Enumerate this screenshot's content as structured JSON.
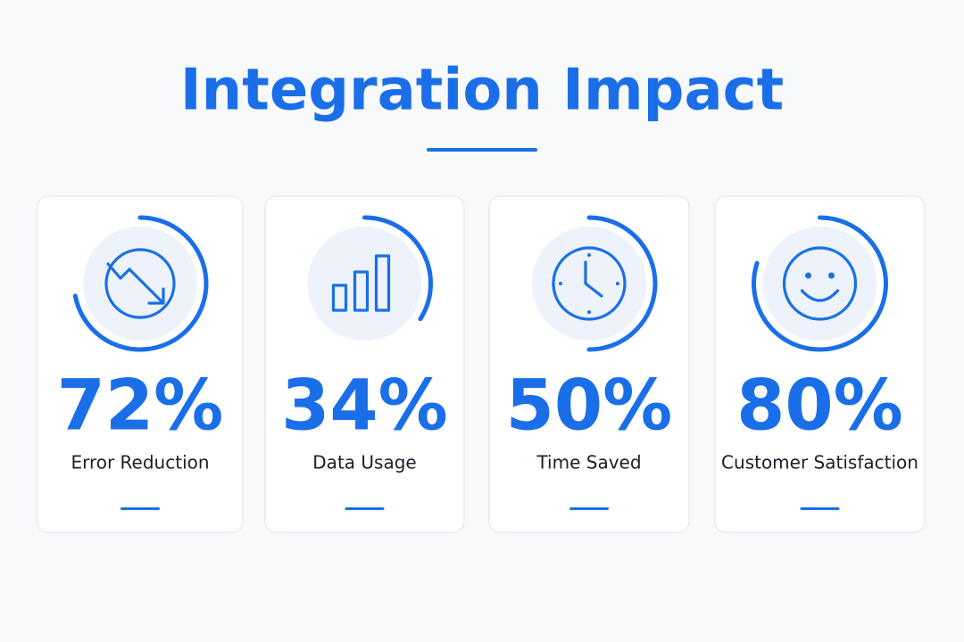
{
  "title": "Integration Impact",
  "cards": [
    {
      "value": 72,
      "value_label": "72%",
      "label": "Error Reduction"
    },
    {
      "value": 34,
      "value_label": "34%",
      "label": "Data Usage"
    },
    {
      "value": 50,
      "value_label": "50%",
      "label": "Time Saved"
    },
    {
      "value": 80,
      "value_label": "80%",
      "label": "Customer Satisfaction"
    }
  ]
}
